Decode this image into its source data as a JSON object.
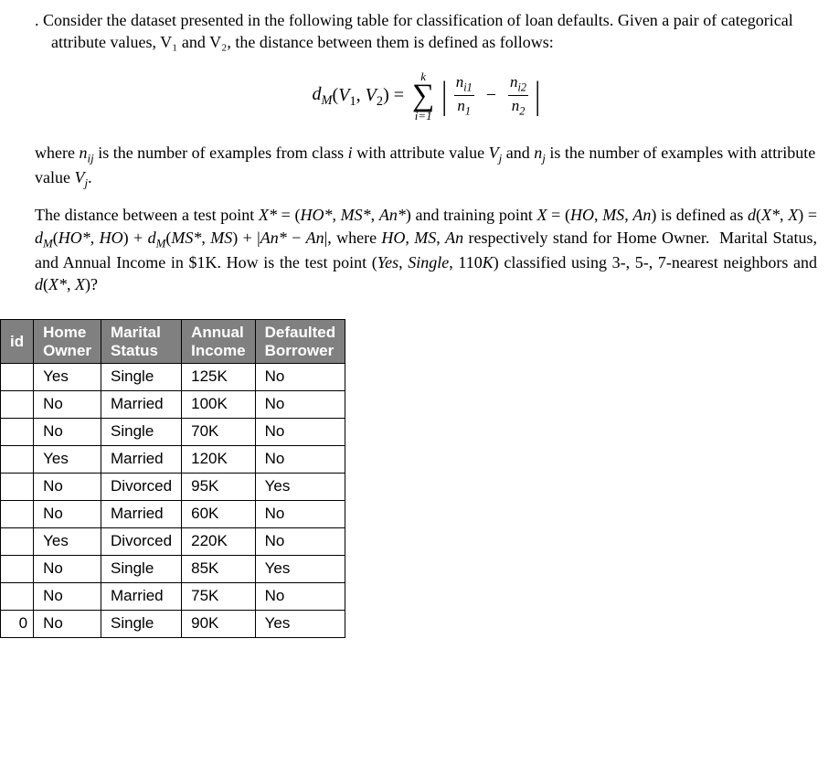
{
  "problem": {
    "intro": ". Consider the dataset presented in the following table for classification of loan defaults. Given a pair of categorical attribute values, V₁ and V₂, the distance between them is defined as follows:",
    "formula_label": "dₘ(V₁, V₂) = ",
    "sigma_top": "k",
    "sigma_bot": "i=1",
    "frac1_num": "nᵢ₁",
    "frac1_den": "n₁",
    "frac2_num": "nᵢ₂",
    "frac2_den": "n₂",
    "where": "where nᵢⱼ is the number of examples from class i with attribute value Vⱼ and nⱼ is the number of examples with attribute value Vⱼ.",
    "dist_para": "The distance between a test point X* = (HO*, MS*, An*) and training point X = (HO, MS, An) is defined as d(X*, X) = dₘ(HO*, HO) + dₘ(MS*, MS) + |An* − An|, where HO, MS, An respectively stand for Home Owner.  Marital Status, and Annual Income in $1K. How is the test point (Yes, Single, 110K) classified using 3-, 5-, 7-nearest neighbors and d(X*, X)?"
  },
  "table": {
    "headers": {
      "id": "id",
      "ho_l1": "Home",
      "ho_l2": "Owner",
      "ms_l1": "Marital",
      "ms_l2": "Status",
      "ai_l1": "Annual",
      "ai_l2": "Income",
      "db_l1": "Defaulted",
      "db_l2": "Borrower"
    },
    "rows": [
      {
        "id": "",
        "ho": "Yes",
        "ms": "Single",
        "ai": "125K",
        "db": "No"
      },
      {
        "id": "",
        "ho": "No",
        "ms": "Married",
        "ai": "100K",
        "db": "No"
      },
      {
        "id": "",
        "ho": "No",
        "ms": "Single",
        "ai": "70K",
        "db": "No"
      },
      {
        "id": "",
        "ho": "Yes",
        "ms": "Married",
        "ai": "120K",
        "db": "No"
      },
      {
        "id": "",
        "ho": "No",
        "ms": "Divorced",
        "ai": "95K",
        "db": "Yes"
      },
      {
        "id": "",
        "ho": "No",
        "ms": "Married",
        "ai": "60K",
        "db": "No"
      },
      {
        "id": "",
        "ho": "Yes",
        "ms": "Divorced",
        "ai": "220K",
        "db": "No"
      },
      {
        "id": "",
        "ho": "No",
        "ms": "Single",
        "ai": "85K",
        "db": "Yes"
      },
      {
        "id": "",
        "ho": "No",
        "ms": "Married",
        "ai": "75K",
        "db": "No"
      },
      {
        "id": "0",
        "ho": "No",
        "ms": "Single",
        "ai": "90K",
        "db": "Yes"
      }
    ],
    "styling": {
      "header_bg": "#808080",
      "header_fg": "#ffffff",
      "cell_bg": "#ffffff",
      "border_color": "#000000",
      "font_family": "Arial",
      "font_size_pt": 13
    }
  },
  "body_text_style": {
    "font_family": "Times New Roman",
    "font_size_pt": 14,
    "color": "#000000",
    "background": "#ffffff"
  }
}
